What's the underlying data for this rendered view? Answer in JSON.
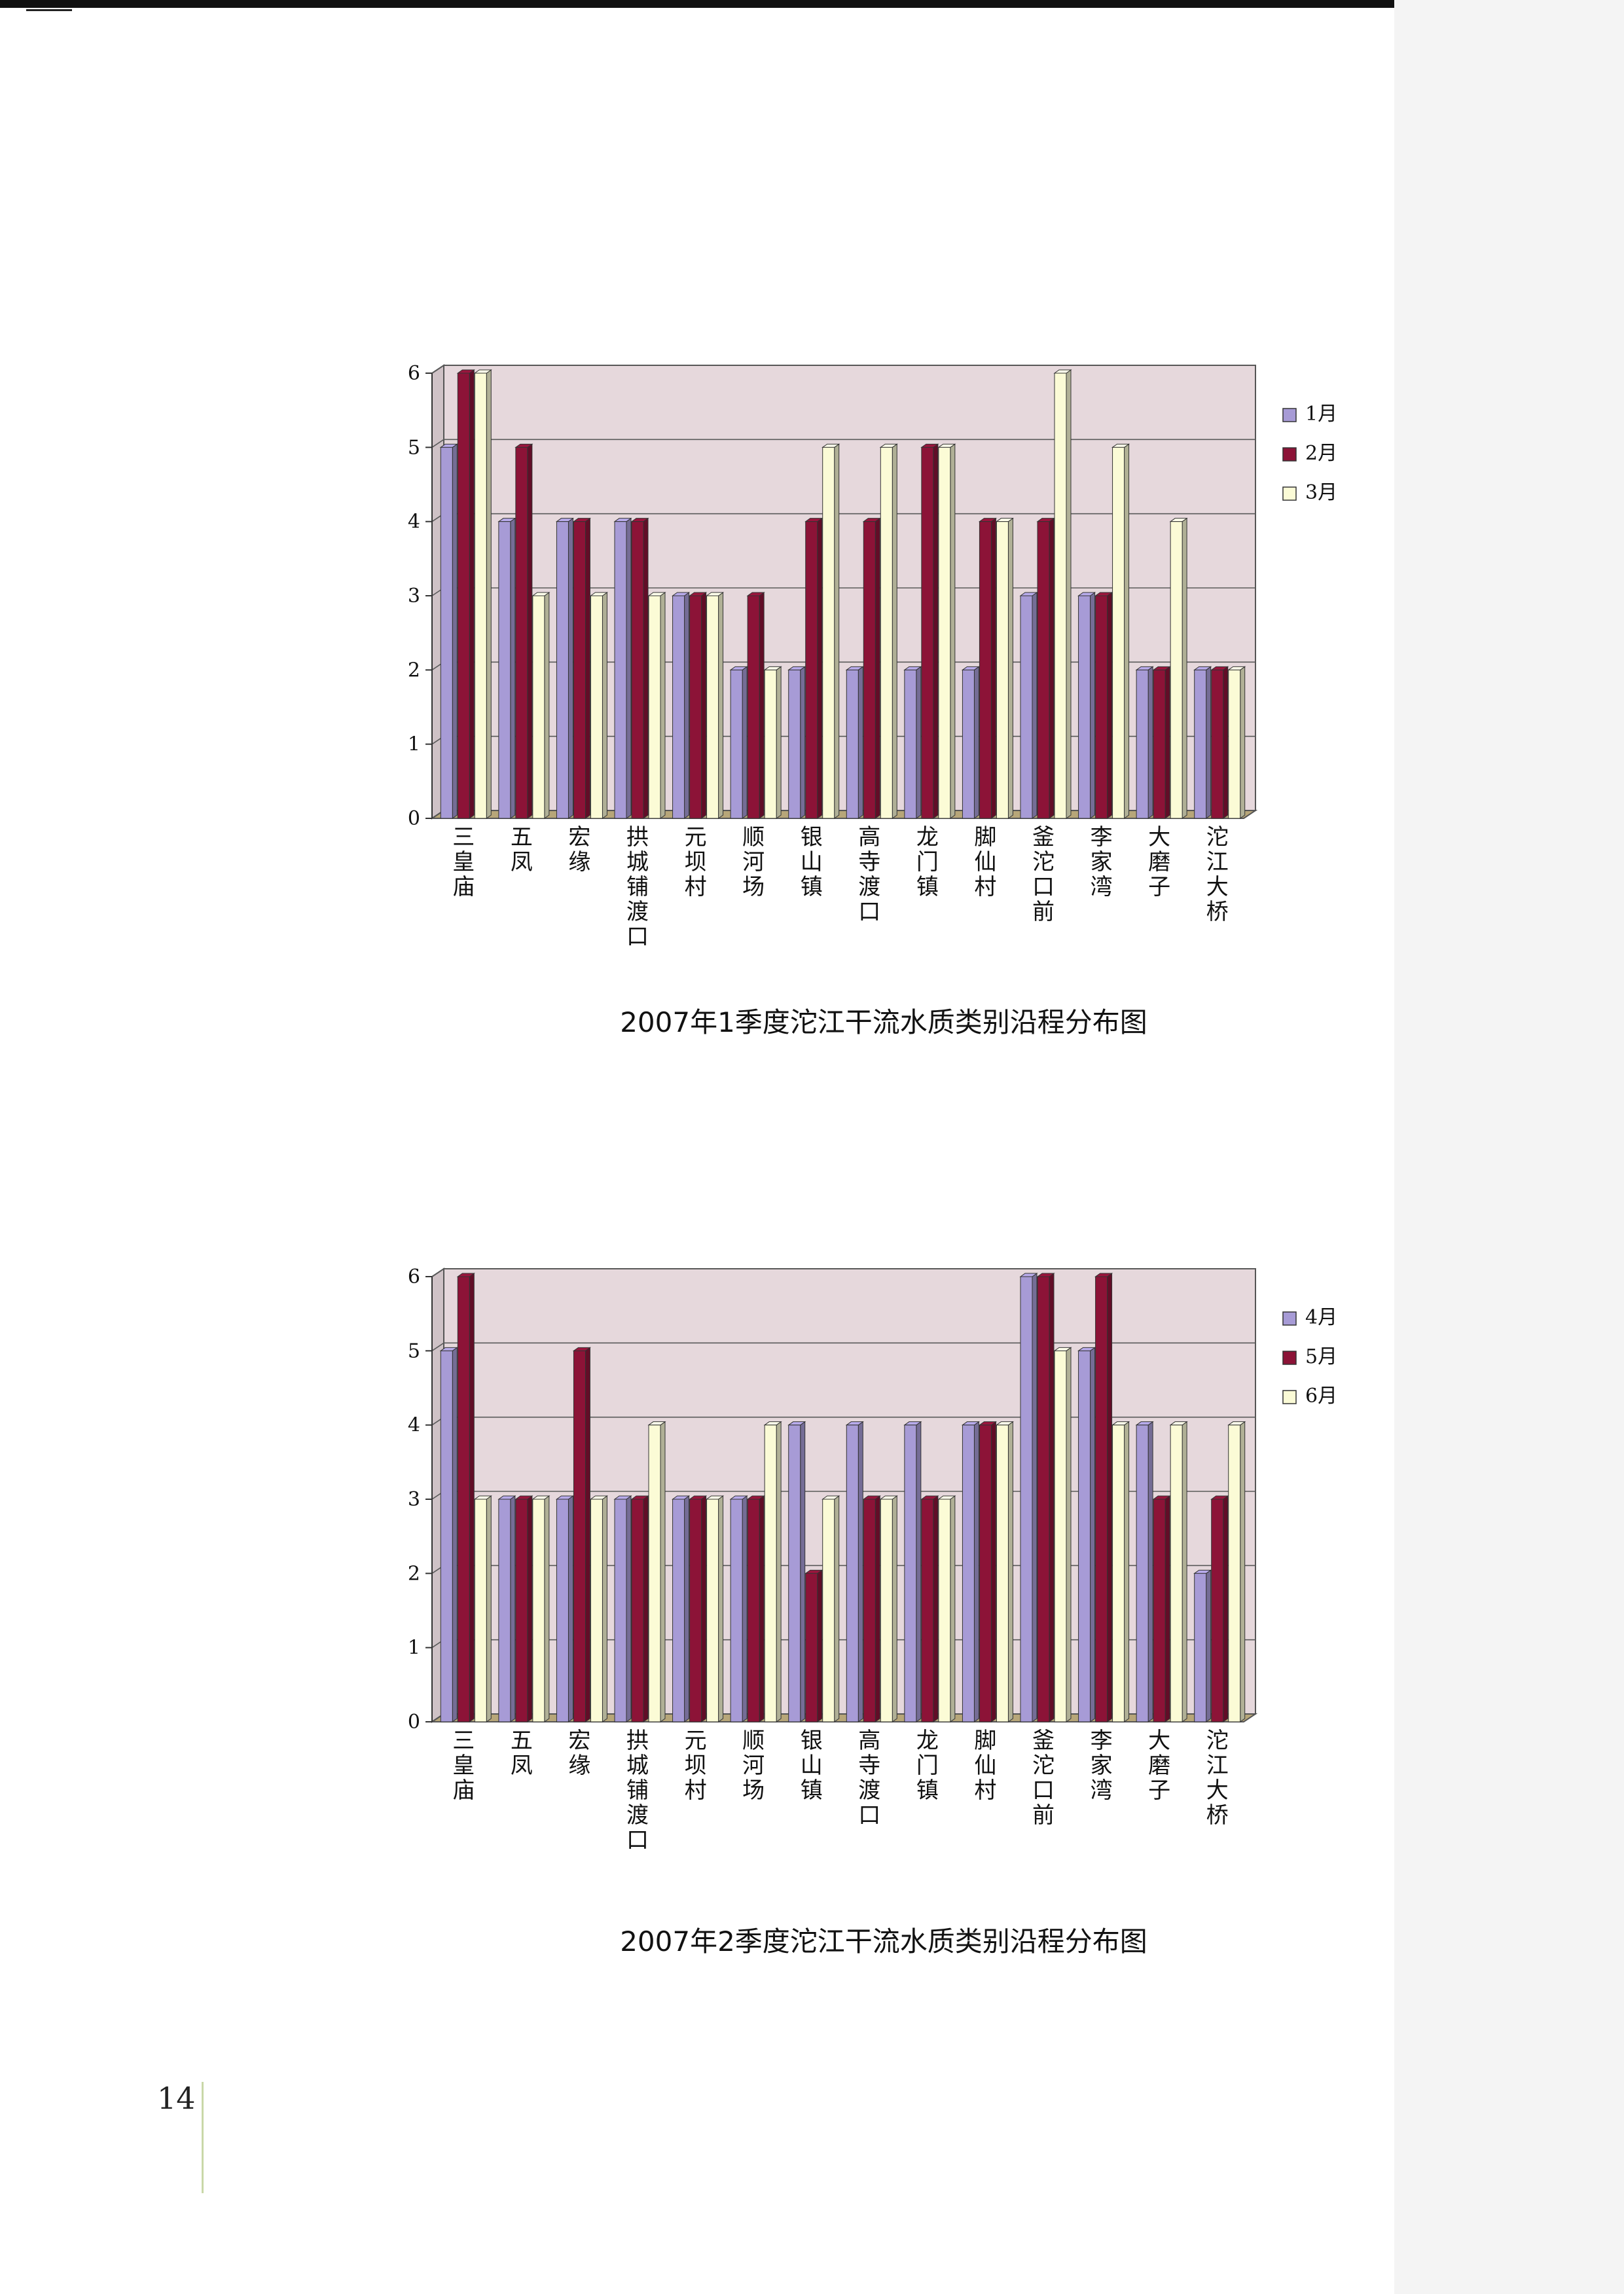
{
  "page": {
    "number": "14"
  },
  "colors": {
    "wall": "#e6d8dc",
    "floor": "#b7a679",
    "grid": "#5a5a5a",
    "series": [
      "#a79bd6",
      "#8c1337",
      "#fbfbd6"
    ]
  },
  "chart_data": [
    {
      "type": "bar",
      "title": "2007年1季度沱江干流水质类别沿程分布图",
      "categories": [
        "三皇庙",
        "五凤",
        "宏缘",
        "拱城铺渡口",
        "元坝村",
        "顺河场",
        "银山镇",
        "高寺渡口",
        "龙门镇",
        "脚仙村",
        "釜沱口前",
        "李家湾",
        "大磨子",
        "沱江大桥"
      ],
      "series": [
        {
          "name": "1月",
          "values": [
            5,
            4,
            4,
            4,
            3,
            2,
            2,
            2,
            2,
            2,
            3,
            3,
            2,
            2
          ]
        },
        {
          "name": "2月",
          "values": [
            6,
            5,
            4,
            4,
            3,
            3,
            4,
            4,
            5,
            4,
            4,
            3,
            2,
            2
          ]
        },
        {
          "name": "3月",
          "values": [
            6,
            3,
            3,
            3,
            3,
            2,
            5,
            5,
            5,
            4,
            6,
            5,
            4,
            2
          ]
        }
      ],
      "ylim": [
        0,
        6
      ],
      "yticks": [
        "0",
        "1",
        "2",
        "3",
        "4",
        "5",
        "6"
      ],
      "grid": true,
      "legend": "right"
    },
    {
      "type": "bar",
      "title": "2007年2季度沱江干流水质类别沿程分布图",
      "categories": [
        "三皇庙",
        "五凤",
        "宏缘",
        "拱城铺渡口",
        "元坝村",
        "顺河场",
        "银山镇",
        "高寺渡口",
        "龙门镇",
        "脚仙村",
        "釜沱口前",
        "李家湾",
        "大磨子",
        "沱江大桥"
      ],
      "series": [
        {
          "name": "4月",
          "values": [
            5,
            3,
            3,
            3,
            3,
            3,
            4,
            4,
            4,
            4,
            6,
            5,
            4,
            2
          ]
        },
        {
          "name": "5月",
          "values": [
            6,
            3,
            5,
            3,
            3,
            3,
            2,
            3,
            3,
            4,
            6,
            6,
            3,
            3
          ]
        },
        {
          "name": "6月",
          "values": [
            3,
            3,
            3,
            4,
            3,
            4,
            3,
            3,
            3,
            4,
            5,
            4,
            4,
            4
          ]
        }
      ],
      "ylim": [
        0,
        6
      ],
      "yticks": [
        "0",
        "1",
        "2",
        "3",
        "4",
        "5",
        "6"
      ],
      "grid": true,
      "legend": "right"
    }
  ]
}
